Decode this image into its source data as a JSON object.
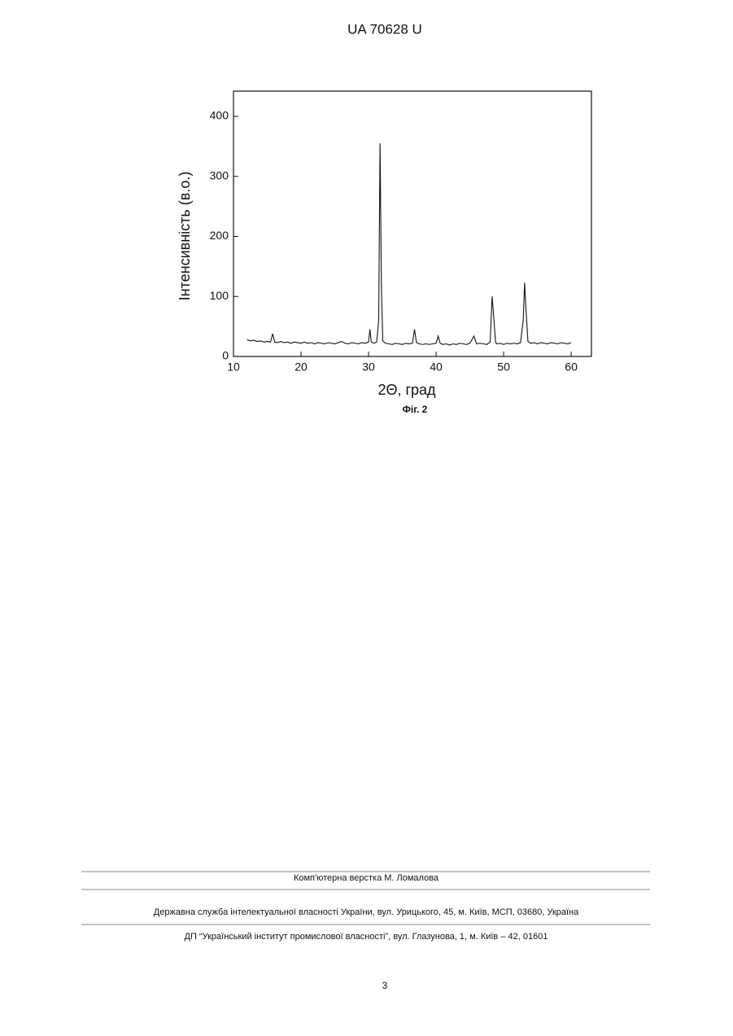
{
  "header": "UA   70628   U",
  "chart_data": {
    "type": "line",
    "x_label": "2Θ, град",
    "y_label": "Інтенсивність (в.о.)",
    "xlim": [
      10,
      63
    ],
    "ylim": [
      0,
      442
    ],
    "xticks": [
      10,
      20,
      30,
      40,
      50,
      60
    ],
    "yticks": [
      0,
      100,
      200,
      300,
      400
    ],
    "color": "#111111",
    "x": [
      12,
      12.5,
      13,
      13.5,
      14,
      14.5,
      15,
      15.5,
      15.8,
      16.1,
      16.5,
      17,
      17.5,
      18,
      18.5,
      19,
      19.5,
      20,
      20.5,
      21,
      21.5,
      22,
      22.5,
      23,
      23.5,
      24,
      24.5,
      25,
      25.5,
      26,
      26.5,
      27,
      27.5,
      28,
      28.5,
      29,
      29.5,
      30,
      30.2,
      30.4,
      30.8,
      31.2,
      31.5,
      31.7,
      31.9,
      32.1,
      32.5,
      33,
      33.5,
      34,
      34.5,
      35,
      35.5,
      36,
      36.5,
      36.8,
      37.1,
      37.5,
      38,
      38.5,
      39,
      39.5,
      40,
      40.3,
      40.6,
      41,
      41.5,
      42,
      42.5,
      43,
      43.5,
      44,
      44.5,
      45,
      45.6,
      46,
      46.5,
      47,
      47.5,
      48,
      48.3,
      48.5,
      48.8,
      49,
      49.5,
      50,
      50.5,
      51,
      51.5,
      52,
      52.5,
      52.9,
      53.1,
      53.3,
      53.6,
      54,
      54.5,
      55,
      55.5,
      56,
      56.5,
      57,
      57.5,
      58,
      58.5,
      59,
      59.5,
      60
    ],
    "values": [
      28,
      26,
      27,
      25,
      26,
      24,
      25,
      24,
      38,
      24,
      23,
      25,
      23,
      24,
      22,
      24,
      23,
      22,
      24,
      22,
      23,
      21,
      23,
      22,
      21,
      23,
      22,
      21,
      23,
      25,
      22,
      21,
      23,
      22,
      21,
      23,
      22,
      24,
      45,
      24,
      22,
      24,
      60,
      355,
      120,
      26,
      22,
      21,
      20,
      22,
      21,
      20,
      22,
      21,
      22,
      45,
      23,
      21,
      20,
      21,
      20,
      21,
      22,
      34,
      22,
      20,
      21,
      19,
      21,
      20,
      22,
      21,
      20,
      22,
      34,
      21,
      22,
      21,
      20,
      24,
      100,
      70,
      24,
      21,
      22,
      20,
      22,
      21,
      22,
      21,
      23,
      60,
      123,
      80,
      25,
      22,
      23,
      21,
      23,
      22,
      21,
      23,
      22,
      21,
      23,
      22,
      21,
      23
    ]
  },
  "caption": "Фіг. 2",
  "footer": {
    "credit": "Комп'ютерна верстка М. Ломалова",
    "line1": "Державна служба інтелектуальної власності України, вул. Урицького, 45, м. Київ, МСП, 03680, Україна",
    "line2": "ДП “Український інститут промислової власності”, вул. Глазунова, 1, м. Київ – 42, 01601"
  },
  "page_number": "3"
}
